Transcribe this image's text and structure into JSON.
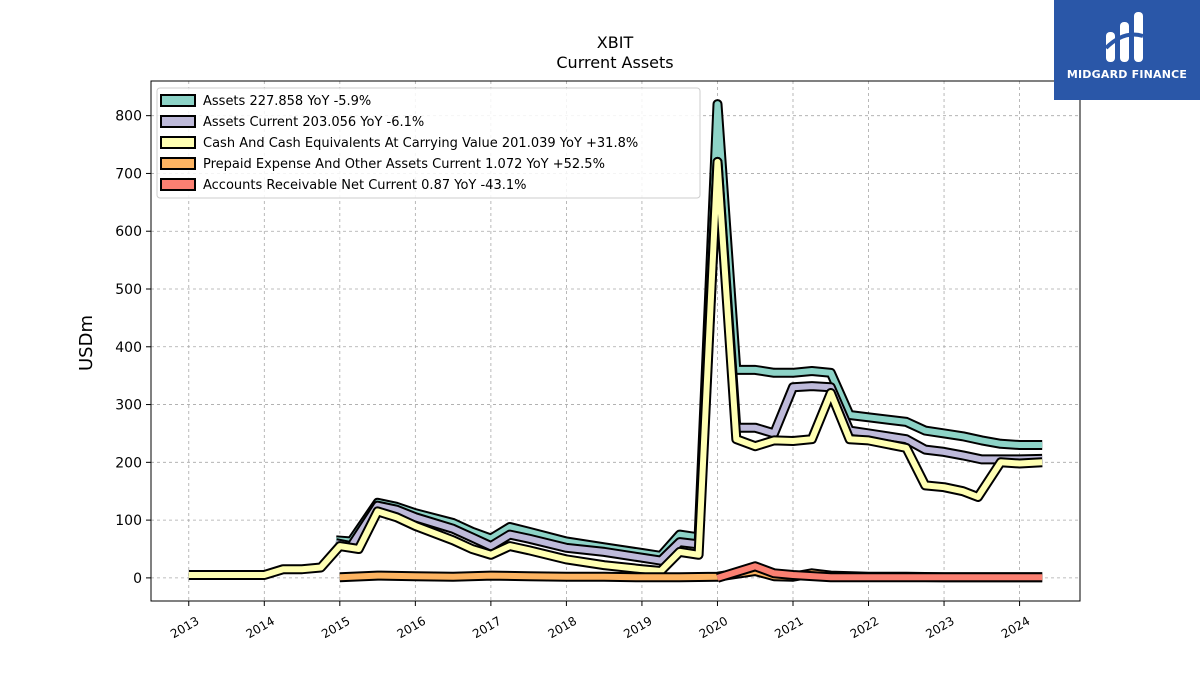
{
  "brand": {
    "name": "MIDGARD FINANCE",
    "bg_color": "#2a57a8"
  },
  "chart_data": {
    "type": "line",
    "title": "XBIT",
    "subtitle": "Current  Assets",
    "ylabel": "USDm",
    "xlabel": "",
    "xlim": [
      2012.5,
      2024.8
    ],
    "ylim": [
      -40,
      860
    ],
    "yticks": [
      0,
      100,
      200,
      300,
      400,
      500,
      600,
      700,
      800
    ],
    "xticks": [
      "2013",
      "2014",
      "2015",
      "2016",
      "2017",
      "2018",
      "2019",
      "2020",
      "2021",
      "2022",
      "2023",
      "2024"
    ],
    "grid": true,
    "legend_position": "top-left",
    "series": [
      {
        "name": "Assets  227.858 YoY -5.9%",
        "color": "#8dd3c7",
        "points": [
          [
            2014.95,
            65
          ],
          [
            2015.15,
            63
          ],
          [
            2015.5,
            130
          ],
          [
            2015.75,
            123
          ],
          [
            2016,
            112
          ],
          [
            2016.5,
            95
          ],
          [
            2016.75,
            80
          ],
          [
            2017,
            68
          ],
          [
            2017.25,
            88
          ],
          [
            2017.5,
            80
          ],
          [
            2018,
            63
          ],
          [
            2018.5,
            53
          ],
          [
            2019,
            43
          ],
          [
            2019.25,
            38
          ],
          [
            2019.5,
            75
          ],
          [
            2019.75,
            70
          ],
          [
            2020,
            820
          ],
          [
            2020.25,
            360
          ],
          [
            2020.5,
            360
          ],
          [
            2020.75,
            355
          ],
          [
            2021,
            355
          ],
          [
            2021.25,
            358
          ],
          [
            2021.5,
            355
          ],
          [
            2021.75,
            282
          ],
          [
            2022,
            278
          ],
          [
            2022.5,
            270
          ],
          [
            2022.75,
            255
          ],
          [
            2023,
            250
          ],
          [
            2023.25,
            245
          ],
          [
            2023.5,
            238
          ],
          [
            2023.75,
            232
          ],
          [
            2024,
            230
          ],
          [
            2024.3,
            230
          ]
        ]
      },
      {
        "name": "Assets Current  203.056 YoY -6.1%",
        "color": "#bebada",
        "points": [
          [
            2014.95,
            60
          ],
          [
            2015.15,
            55
          ],
          [
            2015.5,
            125
          ],
          [
            2015.75,
            118
          ],
          [
            2016,
            105
          ],
          [
            2016.5,
            85
          ],
          [
            2016.75,
            70
          ],
          [
            2017,
            55
          ],
          [
            2017.25,
            75
          ],
          [
            2017.5,
            68
          ],
          [
            2018,
            52
          ],
          [
            2018.5,
            45
          ],
          [
            2019,
            35
          ],
          [
            2019.25,
            30
          ],
          [
            2019.5,
            62
          ],
          [
            2019.75,
            58
          ],
          [
            2020,
            720
          ],
          [
            2020.25,
            260
          ],
          [
            2020.5,
            260
          ],
          [
            2020.75,
            250
          ],
          [
            2021,
            330
          ],
          [
            2021.25,
            332
          ],
          [
            2021.5,
            330
          ],
          [
            2021.75,
            255
          ],
          [
            2022,
            250
          ],
          [
            2022.5,
            240
          ],
          [
            2022.75,
            222
          ],
          [
            2023,
            218
          ],
          [
            2023.25,
            212
          ],
          [
            2023.5,
            205
          ],
          [
            2023.75,
            205
          ],
          [
            2024,
            205
          ],
          [
            2024.3,
            206
          ]
        ]
      },
      {
        "name": "Cash And Cash Equivalents At Carrying Value  201.039 YoY +31.8%",
        "color": "#ffffb3",
        "points": [
          [
            2013,
            5
          ],
          [
            2014,
            5
          ],
          [
            2014.25,
            15
          ],
          [
            2014.5,
            15
          ],
          [
            2014.75,
            18
          ],
          [
            2015,
            55
          ],
          [
            2015.25,
            50
          ],
          [
            2015.5,
            115
          ],
          [
            2015.75,
            105
          ],
          [
            2016,
            90
          ],
          [
            2016.5,
            65
          ],
          [
            2016.75,
            50
          ],
          [
            2017,
            40
          ],
          [
            2017.25,
            55
          ],
          [
            2017.5,
            48
          ],
          [
            2018,
            32
          ],
          [
            2018.5,
            22
          ],
          [
            2019,
            15
          ],
          [
            2019.25,
            12
          ],
          [
            2019.5,
            45
          ],
          [
            2019.75,
            40
          ],
          [
            2020,
            720
          ],
          [
            2020.25,
            240
          ],
          [
            2020.5,
            228
          ],
          [
            2020.75,
            238
          ],
          [
            2021,
            237
          ],
          [
            2021.25,
            240
          ],
          [
            2021.5,
            320
          ],
          [
            2021.75,
            240
          ],
          [
            2022,
            238
          ],
          [
            2022.5,
            225
          ],
          [
            2022.75,
            160
          ],
          [
            2023,
            157
          ],
          [
            2023.25,
            150
          ],
          [
            2023.45,
            140
          ],
          [
            2023.75,
            200
          ],
          [
            2024,
            198
          ],
          [
            2024.3,
            200
          ]
        ]
      },
      {
        "name": "Prepaid Expense And Other Assets Current  1.072 YoY +52.5%",
        "color": "#fdb462",
        "points": [
          [
            2015,
            1
          ],
          [
            2015.5,
            4
          ],
          [
            2016,
            3
          ],
          [
            2016.5,
            2
          ],
          [
            2017,
            4
          ],
          [
            2017.5,
            3
          ],
          [
            2018,
            2
          ],
          [
            2018.5,
            2
          ],
          [
            2019,
            1
          ],
          [
            2019.5,
            1
          ],
          [
            2020,
            2
          ],
          [
            2020.5,
            12
          ],
          [
            2020.75,
            3
          ],
          [
            2021,
            2
          ],
          [
            2021.25,
            8
          ],
          [
            2021.5,
            4
          ],
          [
            2022,
            2
          ],
          [
            2022.5,
            2
          ],
          [
            2023,
            1
          ],
          [
            2023.5,
            1
          ],
          [
            2024,
            1
          ],
          [
            2024.3,
            1
          ]
        ]
      },
      {
        "name": "Accounts Receivable Net Current  0.87 YoY -43.1%",
        "color": "#fb8072",
        "points": [
          [
            2020,
            0
          ],
          [
            2020.5,
            20
          ],
          [
            2020.75,
            8
          ],
          [
            2021,
            5
          ],
          [
            2021.5,
            1
          ],
          [
            2022,
            1
          ],
          [
            2022.5,
            1
          ],
          [
            2023,
            1
          ],
          [
            2023.5,
            1
          ],
          [
            2024,
            1
          ],
          [
            2024.3,
            1
          ]
        ]
      }
    ]
  }
}
